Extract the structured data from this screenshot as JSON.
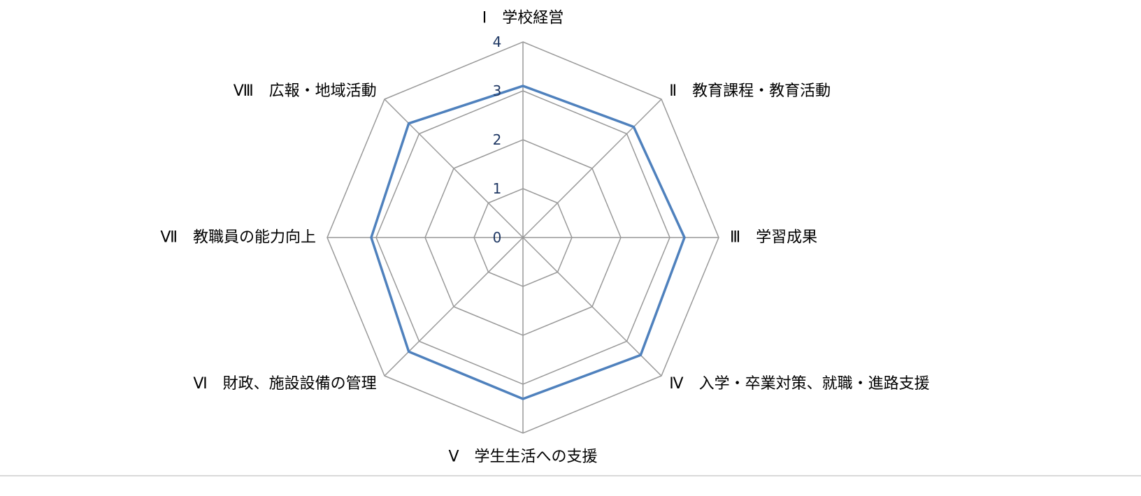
{
  "chart_data": {
    "type": "radar",
    "categories": [
      "Ⅰ　学校経営",
      "Ⅱ　教育課程・教育活動",
      "Ⅲ　学習成果",
      "Ⅳ　入学・卒業対策、就職・進路支援",
      "Ⅴ　学生生活への支援",
      "Ⅵ　財政、施設設備の管理",
      "Ⅶ　教職員の能力向上",
      "Ⅷ　広報・地域活動"
    ],
    "series": [
      {
        "values": [
          3.1,
          3.2,
          3.3,
          3.4,
          3.3,
          3.3,
          3.1,
          3.3
        ]
      }
    ],
    "rlim": [
      0,
      4
    ],
    "rticks": [
      "0",
      "1",
      "2",
      "3",
      "4"
    ],
    "grid": true,
    "legend": "none",
    "colors": {
      "series": "#4f81bd",
      "grid": "#999999",
      "tick_labels": "#1f3864"
    }
  }
}
